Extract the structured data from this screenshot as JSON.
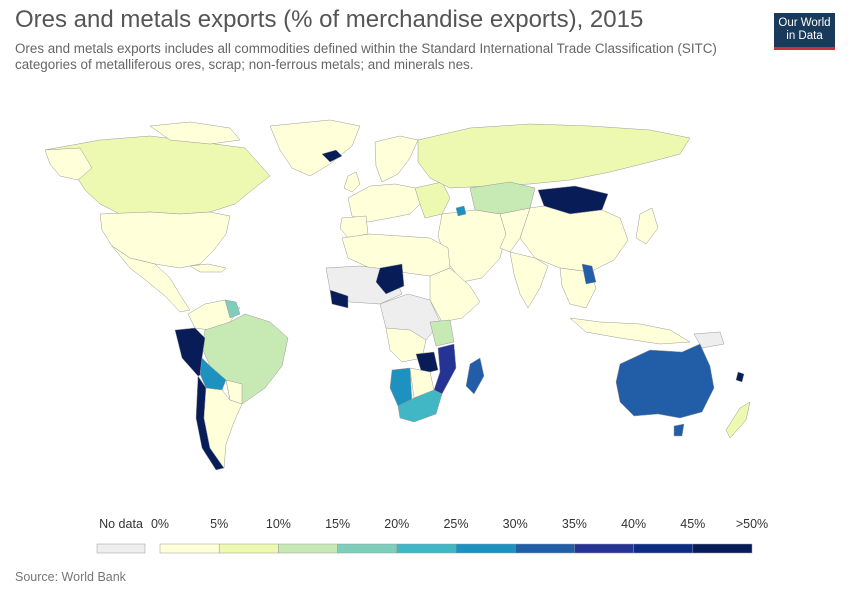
{
  "title": "Ores and metals exports (% of merchandise exports), 2015",
  "subtitle": "Ores and metals exports includes all commodities defined within the Standard International Trade Classification (SITC) categories of metalliferous ores, scrap; non-ferrous metals; and minerals nes.",
  "logo": {
    "line1": "Our World",
    "line2": "in Data"
  },
  "source": "Source: World Bank",
  "colors": {
    "no_data": "#eeeeee",
    "scale": [
      "#ffffd9",
      "#edf8b1",
      "#c7e9b4",
      "#7fcdbb",
      "#41b6c4",
      "#1d91c0",
      "#225ea8",
      "#253494",
      "#0c2c84",
      "#081d58"
    ]
  },
  "legend": {
    "no_data_label": "No data",
    "tick_labels": [
      "0%",
      "5%",
      "10%",
      "15%",
      "20%",
      "25%",
      "30%",
      "35%",
      "40%",
      "45%",
      ">50%"
    ]
  },
  "map_data": {
    "type": "choropleth",
    "year": "2015",
    "scale_bins": [
      0,
      5,
      10,
      15,
      20,
      25,
      30,
      35,
      40,
      45,
      50
    ]
  }
}
